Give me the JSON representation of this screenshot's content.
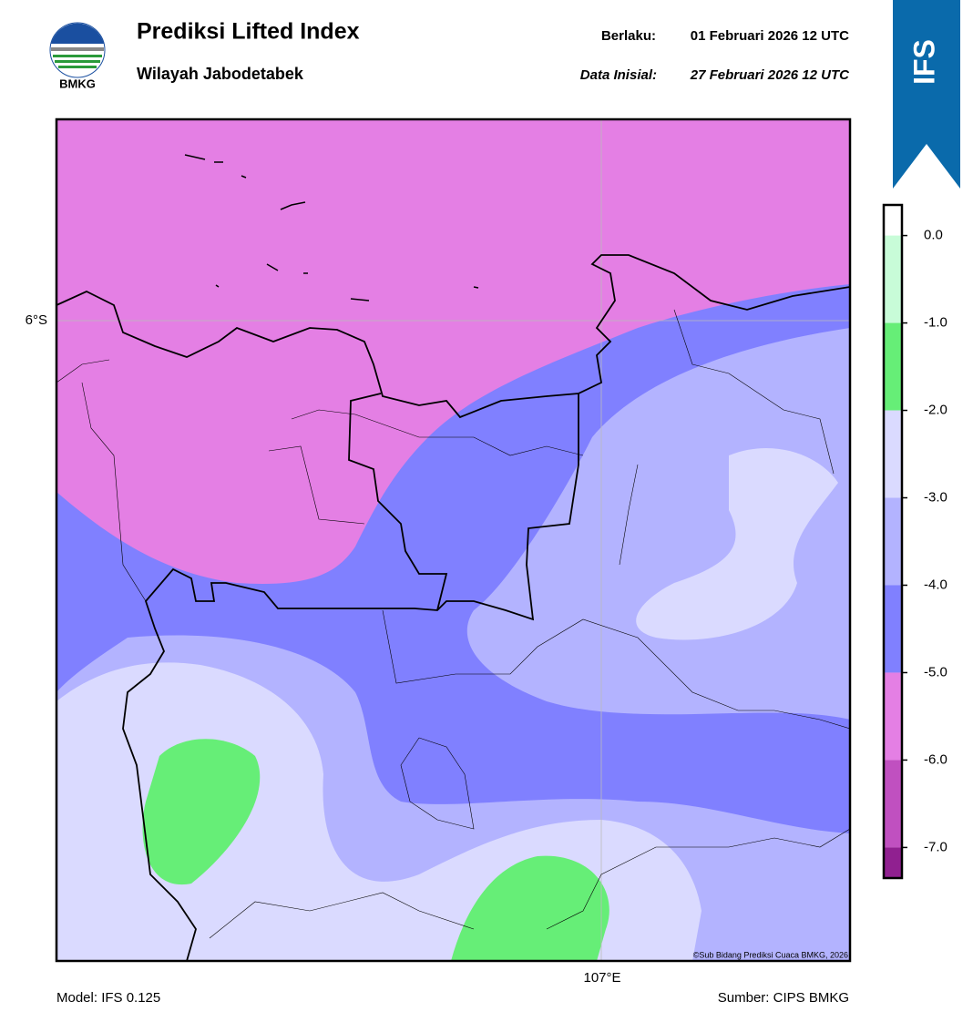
{
  "header": {
    "title": "Prediksi Lifted Index",
    "subtitle": "Wilayah Jabodetabek",
    "valid_label": "Berlaku:",
    "valid_value": "01 Februari 2026 12 UTC",
    "init_label": "Data Inisial:",
    "init_value": "27 Februari 2026 12 UTC",
    "logo_text": "BMKG",
    "banner": "IFS"
  },
  "map": {
    "lat_label": "6°S",
    "lon_label": "107°E",
    "credit": "©Sub Bidang Prediksi Cuaca BMKG, 2026"
  },
  "colorbar": {
    "lim": [
      0.35,
      -7.35
    ],
    "ticks": [
      {
        "value": 0,
        "label": "0.0"
      },
      {
        "value": -1,
        "label": "-1.0"
      },
      {
        "value": -2,
        "label": "-2.0"
      },
      {
        "value": -3,
        "label": "-3.0"
      },
      {
        "value": -4,
        "label": "-4.0"
      },
      {
        "value": -5,
        "label": "-5.0"
      },
      {
        "value": -6,
        "label": "-6.0"
      },
      {
        "value": -7,
        "label": "-7.0"
      }
    ],
    "colors": [
      "#ffffff",
      "#c8fcd8",
      "#66ee77",
      "#dadaff",
      "#b3b3ff",
      "#8080ff",
      "#e47fe4",
      "#c050c0",
      "#902090"
    ]
  },
  "footer": {
    "model": "Model: IFS 0.125",
    "source": "Sumber: CIPS BMKG"
  }
}
